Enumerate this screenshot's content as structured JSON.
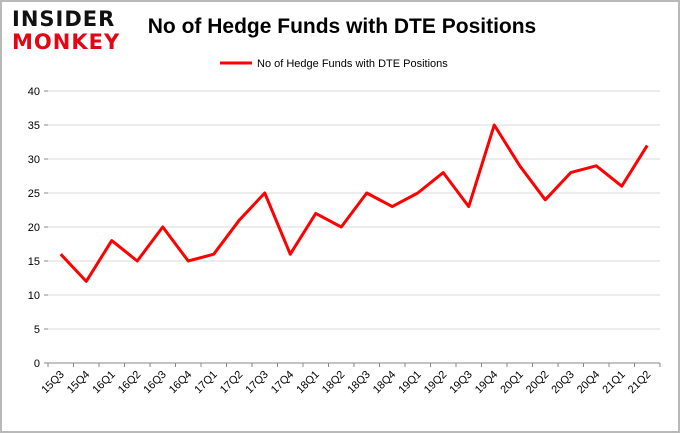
{
  "logo": {
    "line1": "INSIDER",
    "line2": "MONKEY"
  },
  "chart_data": {
    "type": "line",
    "title": "No of Hedge Funds with DTE Positions",
    "xlabel": "",
    "ylabel": "",
    "categories": [
      "15Q3",
      "15Q4",
      "16Q1",
      "16Q2",
      "16Q3",
      "16Q4",
      "17Q1",
      "17Q2",
      "17Q3",
      "17Q4",
      "18Q1",
      "18Q2",
      "18Q3",
      "18Q4",
      "19Q1",
      "19Q2",
      "19Q3",
      "19Q4",
      "20Q1",
      "20Q2",
      "20Q3",
      "20Q4",
      "21Q1",
      "21Q2"
    ],
    "series": [
      {
        "name": "No of Hedge Funds with DTE Positions",
        "color": "#ff0000",
        "values": [
          16,
          12,
          18,
          15,
          20,
          15,
          16,
          21,
          25,
          16,
          22,
          20,
          25,
          23,
          25,
          28,
          23,
          35,
          29,
          24,
          28,
          29,
          26,
          32
        ]
      }
    ],
    "ylim": [
      0,
      40
    ],
    "yticks": [
      0,
      5,
      10,
      15,
      20,
      25,
      30,
      35,
      40
    ],
    "grid": true,
    "legend": "top-center"
  }
}
